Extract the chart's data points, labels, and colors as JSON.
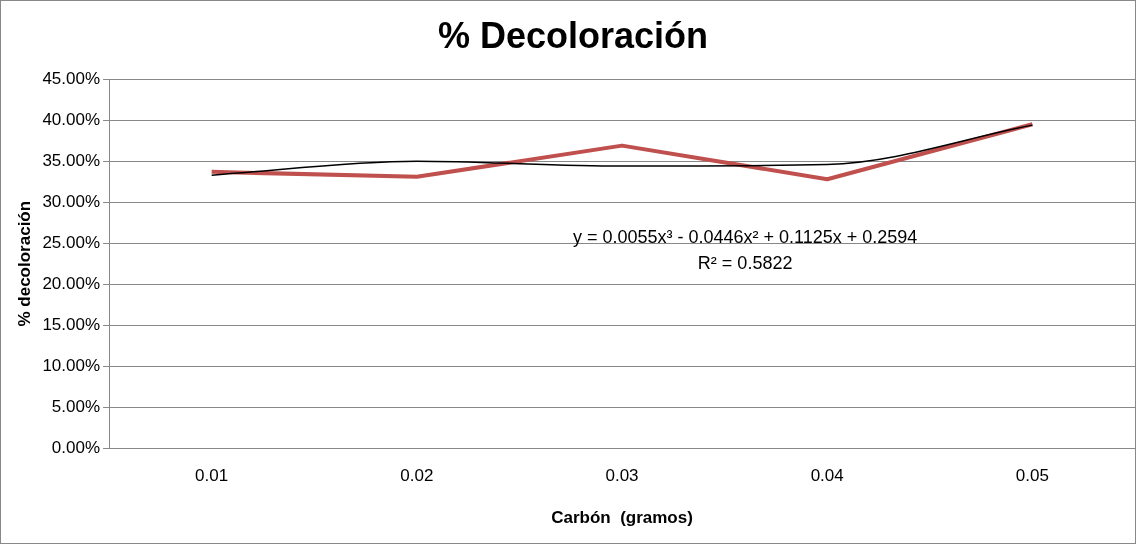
{
  "chart_data": {
    "type": "line",
    "title": "% Decoloración",
    "xlabel": "Carbón  (gramos)",
    "ylabel": "% decoloración",
    "categories": [
      "0.01",
      "0.02",
      "0.03",
      "0.04",
      "0.05"
    ],
    "series": [
      {
        "color": "#c0504d",
        "values": [
          33.7,
          33.1,
          36.9,
          32.8,
          39.5
        ]
      },
      {
        "type": "line",
        "color": "#000000",
        "values": [
          33.3,
          35.0,
          34.4,
          34.6,
          39.4
        ]
      }
    ],
    "ylim": [
      0,
      45
    ],
    "yticks": [
      {
        "value": 0,
        "label": "0.00%"
      },
      {
        "value": 5,
        "label": "5.00%"
      },
      {
        "value": 10,
        "label": "10.00%"
      },
      {
        "value": 15,
        "label": "15.00%"
      },
      {
        "value": 20,
        "label": "20.00%"
      },
      {
        "value": 25,
        "label": "25.00%"
      },
      {
        "value": 30,
        "label": "30.00%"
      },
      {
        "value": 35,
        "label": "35.00%"
      },
      {
        "value": 40,
        "label": "40.00%"
      },
      {
        "value": 45,
        "label": "45.00%"
      }
    ],
    "grid": "y",
    "legend": false,
    "marker": "none",
    "annotations": [
      "y = 0.0055x³ - 0.0446x² + 0.1125x + 0.2594",
      "R² = 0.5822"
    ]
  }
}
